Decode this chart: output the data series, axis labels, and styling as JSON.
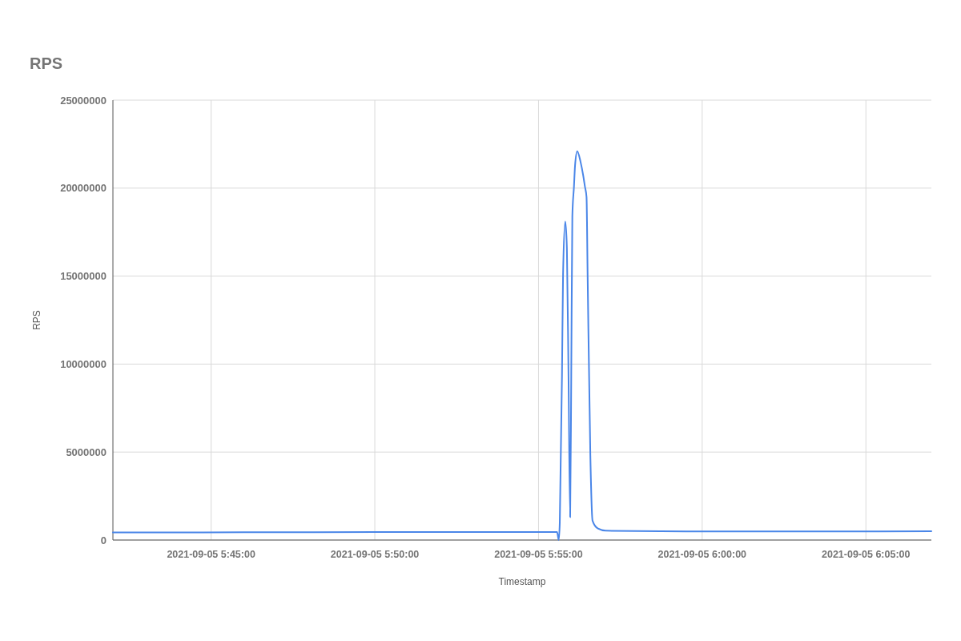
{
  "chart_data": {
    "type": "line",
    "title": "RPS",
    "xlabel": "Timestamp",
    "ylabel": "RPS",
    "x": [
      "2021-09-05T05:42:00",
      "2021-09-05T05:46:00",
      "2021-09-05T05:50:00",
      "2021-09-05T05:53:00",
      "2021-09-05T05:55:34",
      "2021-09-05T05:55:37",
      "2021-09-05T05:55:39",
      "2021-09-05T05:55:43",
      "2021-09-05T05:55:45",
      "2021-09-05T05:55:49",
      "2021-09-05T05:55:52",
      "2021-09-05T05:55:55",
      "2021-09-05T05:55:58",
      "2021-09-05T05:56:00",
      "2021-09-05T05:56:02",
      "2021-09-05T05:56:05",
      "2021-09-05T05:56:07",
      "2021-09-05T05:56:11",
      "2021-09-05T05:56:17",
      "2021-09-05T05:56:22",
      "2021-09-05T05:56:25",
      "2021-09-05T05:56:28",
      "2021-09-05T05:56:30",
      "2021-09-05T05:56:35",
      "2021-09-05T05:56:39",
      "2021-09-05T05:56:49",
      "2021-09-05T05:57:03",
      "2021-09-05T06:00:00",
      "2021-09-05T06:03:30",
      "2021-09-05T06:07:00"
    ],
    "series": [
      {
        "color": "#4a86e8",
        "values": [
          430000,
          440000,
          450000,
          450000,
          460000,
          0,
          1000000,
          9300000,
          15100000,
          18100000,
          16600000,
          9300000,
          1300000,
          9300000,
          18400000,
          20100000,
          21300000,
          22100000,
          21500000,
          20700000,
          20100000,
          19500000,
          15100000,
          4800000,
          1100000,
          650000,
          530000,
          490000,
          490000,
          500000
        ]
      }
    ],
    "xlim": [
      "2021-09-05T05:42:00",
      "2021-09-05T06:07:00"
    ],
    "xticks": [
      {
        "value": "2021-09-05T05:45:00",
        "label": "2021-09-05 5:45:00"
      },
      {
        "value": "2021-09-05T05:50:00",
        "label": "2021-09-05 5:50:00"
      },
      {
        "value": "2021-09-05T05:55:00",
        "label": "2021-09-05 5:55:00"
      },
      {
        "value": "2021-09-05T06:00:00",
        "label": "2021-09-05 6:00:00"
      },
      {
        "value": "2021-09-05T06:05:00",
        "label": "2021-09-05 6:05:00"
      }
    ],
    "ylim": [
      0,
      25000000
    ],
    "yticks": [
      0,
      5000000,
      10000000,
      15000000,
      20000000,
      25000000
    ],
    "grid": true,
    "line_style": "solid"
  }
}
